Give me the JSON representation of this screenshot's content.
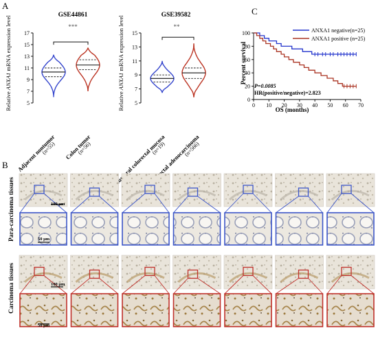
{
  "panels": {
    "a": "A",
    "b": "B",
    "c": "C"
  },
  "violin_charts": [
    {
      "title": "GSE44861",
      "ylabel_pre": "Relative ",
      "ylabel_gene": "ANXA1",
      "ylabel_post": " mRNA expression level",
      "yticks": [
        "5",
        "7",
        "9",
        "11",
        "13",
        "15",
        "17"
      ],
      "ymin": 5,
      "ymax": 17,
      "significance": "***",
      "groups": [
        {
          "label": "Adjacent nontumor",
          "n": "(n=55)",
          "color": "#3344cc",
          "median": 10.3,
          "q1": 9.5,
          "q3": 11.0,
          "min": 6.0,
          "max": 13.2
        },
        {
          "label": "Colon tumor",
          "n": "(n=56)",
          "color": "#bb3322",
          "median": 11.5,
          "q1": 10.7,
          "q3": 12.4,
          "min": 7.0,
          "max": 14.4
        }
      ]
    },
    {
      "title": "GSE39582",
      "ylabel_pre": "Relative ",
      "ylabel_gene": "ANXA1",
      "ylabel_post": " mRNA expression level",
      "yticks": [
        "5",
        "7",
        "9",
        "11",
        "13",
        "15"
      ],
      "ymin": 5,
      "ymax": 15,
      "significance": "**",
      "groups": [
        {
          "label": "Non tumoral colorectal mucosa",
          "n": "(n=19)",
          "color": "#3344cc",
          "median": 8.5,
          "q1": 8.0,
          "q3": 9.0,
          "min": 6.5,
          "max": 11.0
        },
        {
          "label": "Colorectal adenocarcinoma",
          "n": "(n=566)",
          "color": "#bb3322",
          "median": 9.3,
          "q1": 8.5,
          "q3": 10.0,
          "min": 5.8,
          "max": 13.5
        }
      ]
    }
  ],
  "survival": {
    "ylabel": "Percent survival",
    "xlabel": "OS (months)",
    "xticks": [
      "0",
      "10",
      "20",
      "30",
      "40",
      "50",
      "60",
      "70"
    ],
    "yticks": [
      "0",
      "20",
      "40",
      "60",
      "80",
      "100"
    ],
    "xmax": 70,
    "ymax": 100,
    "legend": [
      "ANXA1 negative(n=25)",
      "ANXA1 positive (n=25)"
    ],
    "p_value": "P=0.0085",
    "hr": "HR(positive/negative)=2.823",
    "series": [
      {
        "color": "#2233cc",
        "steps": [
          [
            0,
            100
          ],
          [
            4,
            96
          ],
          [
            7,
            92
          ],
          [
            10,
            88
          ],
          [
            15,
            84
          ],
          [
            18,
            80
          ],
          [
            25,
            76
          ],
          [
            32,
            72
          ],
          [
            38,
            68
          ],
          [
            67,
            68
          ]
        ],
        "censors": [
          [
            40,
            68
          ],
          [
            42,
            68
          ],
          [
            45,
            68
          ],
          [
            47,
            68
          ],
          [
            50,
            68
          ],
          [
            52,
            68
          ],
          [
            55,
            68
          ],
          [
            57,
            68
          ],
          [
            59,
            68
          ],
          [
            61,
            68
          ],
          [
            63,
            68
          ],
          [
            65,
            68
          ],
          [
            67,
            68
          ]
        ]
      },
      {
        "color": "#aa3322",
        "steps": [
          [
            0,
            100
          ],
          [
            2,
            96
          ],
          [
            4,
            92
          ],
          [
            6,
            88
          ],
          [
            8,
            84
          ],
          [
            11,
            80
          ],
          [
            13,
            76
          ],
          [
            15,
            72
          ],
          [
            18,
            68
          ],
          [
            20,
            64
          ],
          [
            23,
            60
          ],
          [
            26,
            56
          ],
          [
            30,
            52
          ],
          [
            33,
            48
          ],
          [
            36,
            44
          ],
          [
            40,
            40
          ],
          [
            44,
            36
          ],
          [
            48,
            32
          ],
          [
            52,
            28
          ],
          [
            55,
            24
          ],
          [
            58,
            20
          ],
          [
            67,
            20
          ]
        ],
        "censors": [
          [
            59,
            20
          ],
          [
            61,
            20
          ],
          [
            63,
            20
          ],
          [
            65,
            20
          ],
          [
            67,
            20
          ]
        ]
      }
    ]
  },
  "histology": {
    "row_labels": [
      "Para-carcinoma tissues",
      "Carcinoma tissues"
    ],
    "scale_low": "100 μm",
    "scale_high": "50 μm",
    "para_color": "#3b55c8",
    "carc_color": "#c0302a"
  }
}
